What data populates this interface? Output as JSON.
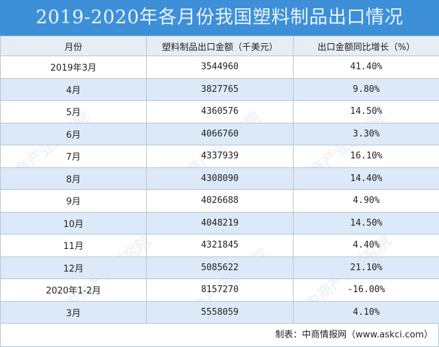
{
  "title": "2019-2020年各月份我国塑料制品出口情况",
  "table": {
    "headers": [
      "月份",
      "塑料制品出口金额（千美元）",
      "出口金额同比增长（%）"
    ],
    "rows": [
      {
        "month": "2019年3月",
        "amount": "3544960",
        "growth": "41.40%"
      },
      {
        "month": "4月",
        "amount": "3827765",
        "growth": "9.80%"
      },
      {
        "month": "5月",
        "amount": "4360576",
        "growth": "14.50%"
      },
      {
        "month": "6月",
        "amount": "4066760",
        "growth": "3.30%"
      },
      {
        "month": "7月",
        "amount": "4337939",
        "growth": "16.10%"
      },
      {
        "month": "8月",
        "amount": "4308090",
        "growth": "14.40%"
      },
      {
        "month": "9月",
        "amount": "4026688",
        "growth": "4.90%"
      },
      {
        "month": "10月",
        "amount": "4048219",
        "growth": "14.50%"
      },
      {
        "month": "11月",
        "amount": "4321845",
        "growth": "4.40%"
      },
      {
        "month": "12月",
        "amount": "5085622",
        "growth": "21.10%"
      },
      {
        "month": "2020年1-2月",
        "amount": "8157270",
        "growth": "-16.00%"
      },
      {
        "month": "3月",
        "amount": "5558059",
        "growth": "4.10%"
      }
    ]
  },
  "footer": "制表：中商情报网（www.askci.com）",
  "watermark": "中商产业研究院",
  "colors": {
    "title_bg": "#3d8fd8",
    "header_bg": "#e6edf5",
    "alt_row_bg": "#dbe9f8"
  }
}
